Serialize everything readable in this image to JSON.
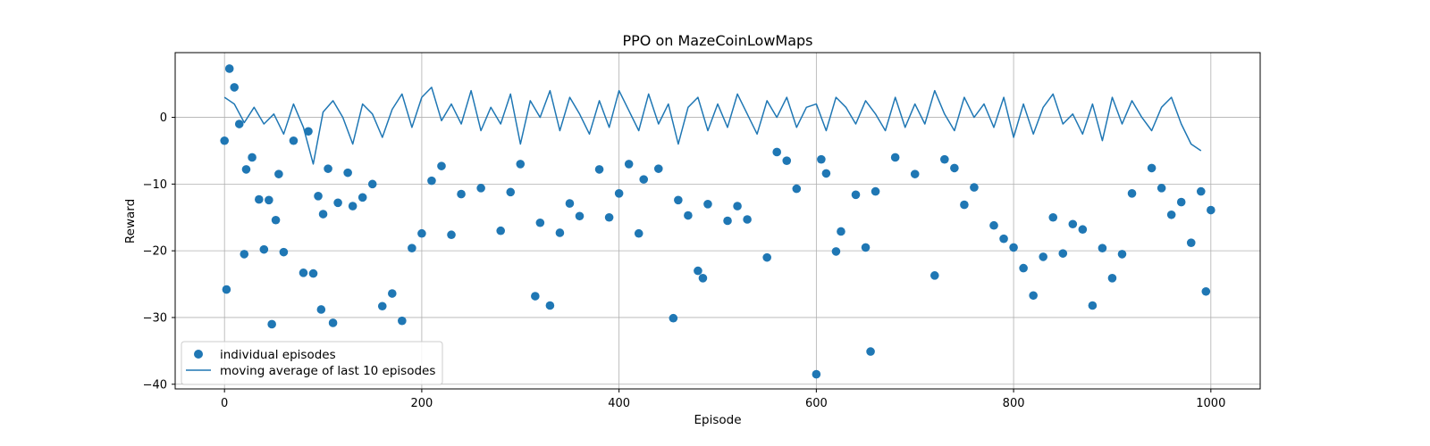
{
  "chart_data": {
    "type": "scatter",
    "title": "PPO on MazeCoinLowMaps",
    "xlabel": "Episode",
    "ylabel": "Reward",
    "xlim": [
      -50,
      1050
    ],
    "ylim": [
      -40.7,
      9.7
    ],
    "xticks": [
      0,
      200,
      400,
      600,
      800,
      1000
    ],
    "yticks": [
      0,
      -10,
      -20,
      -30,
      -40
    ],
    "grid": true,
    "legend_position": "lower-left",
    "colors": {
      "series": "#1f77b4",
      "grid": "#b0b0b0"
    },
    "series": [
      {
        "name": "individual episodes",
        "kind": "scatter",
        "x": [
          0,
          2,
          5,
          10,
          15,
          20,
          22,
          28,
          35,
          40,
          45,
          48,
          52,
          55,
          60,
          70,
          80,
          85,
          90,
          95,
          98,
          100,
          105,
          110,
          115,
          125,
          130,
          140,
          150,
          160,
          170,
          180,
          190,
          200,
          210,
          220,
          230,
          240,
          260,
          280,
          290,
          300,
          315,
          320,
          330,
          340,
          350,
          360,
          380,
          390,
          400,
          410,
          420,
          425,
          440,
          455,
          460,
          470,
          480,
          485,
          490,
          510,
          520,
          530,
          550,
          560,
          570,
          580,
          600,
          605,
          610,
          620,
          625,
          640,
          650,
          655,
          660,
          680,
          700,
          720,
          730,
          740,
          750,
          760,
          780,
          790,
          800,
          810,
          820,
          830,
          840,
          850,
          860,
          870,
          880,
          890,
          900,
          910,
          920,
          940,
          950,
          960,
          970,
          980,
          990,
          995,
          1000
        ],
        "y": [
          -3.5,
          -25.8,
          7.3,
          4.5,
          -1.0,
          -20.5,
          -7.8,
          -6.0,
          -12.3,
          -19.8,
          -12.4,
          -31.0,
          -15.4,
          -8.5,
          -20.2,
          -3.5,
          -23.3,
          -2.1,
          -23.4,
          -11.8,
          -28.8,
          -14.5,
          -7.7,
          -30.8,
          -12.8,
          -8.3,
          -13.3,
          -12.0,
          -10.0,
          -28.3,
          -26.4,
          -30.5,
          -19.6,
          -17.4,
          -9.5,
          -7.3,
          -17.6,
          -11.5,
          -10.6,
          -17.0,
          -11.2,
          -7.0,
          -26.8,
          -15.8,
          -28.2,
          -17.3,
          -12.9,
          -14.8,
          -7.8,
          -15.0,
          -11.4,
          -7.0,
          -17.4,
          -9.3,
          -7.7,
          -30.1,
          -12.4,
          -14.7,
          -23.0,
          -24.1,
          -13.0,
          -15.5,
          -13.3,
          -15.3,
          -21.0,
          -5.2,
          -6.5,
          -10.7,
          -38.5,
          -6.3,
          -8.4,
          -20.1,
          -17.1,
          -11.6,
          -19.5,
          -35.1,
          -11.1,
          -6.0,
          -8.5,
          -23.7,
          -6.3,
          -7.6,
          -13.1,
          -10.5,
          -16.2,
          -18.2,
          -19.5,
          -22.6,
          -26.7,
          -20.9,
          -15.0,
          -20.4,
          -16.0,
          -16.8,
          -28.2,
          -19.6,
          -24.1,
          -20.5,
          -11.4,
          -7.6,
          -10.6,
          -14.6,
          -12.7,
          -18.8,
          -11.1,
          -26.1,
          -13.9
        ]
      },
      {
        "name": "moving average of last 10 episodes",
        "kind": "line",
        "x": [
          0,
          10,
          20,
          30,
          40,
          50,
          60,
          70,
          80,
          90,
          100,
          110,
          120,
          130,
          140,
          150,
          160,
          170,
          180,
          190,
          200,
          210,
          220,
          230,
          240,
          250,
          260,
          270,
          280,
          290,
          300,
          310,
          320,
          330,
          340,
          350,
          360,
          370,
          380,
          390,
          400,
          410,
          420,
          430,
          440,
          450,
          460,
          470,
          480,
          490,
          500,
          510,
          520,
          530,
          540,
          550,
          560,
          570,
          580,
          590,
          600,
          610,
          620,
          630,
          640,
          650,
          660,
          670,
          680,
          690,
          700,
          710,
          720,
          730,
          740,
          750,
          760,
          770,
          780,
          790,
          800,
          810,
          820,
          830,
          840,
          850,
          860,
          870,
          880,
          890,
          900,
          910,
          920,
          930,
          940,
          950,
          960,
          970,
          980,
          990
        ],
        "y": [
          3.0,
          2.0,
          -0.8,
          1.5,
          -1.0,
          0.5,
          -2.5,
          2.0,
          -1.5,
          -7.0,
          0.8,
          2.5,
          0.0,
          -4.0,
          2.0,
          0.5,
          -3.0,
          1.2,
          3.5,
          -1.5,
          3.0,
          4.5,
          -0.5,
          2.0,
          -1.0,
          4.0,
          -2.0,
          1.5,
          -1.0,
          3.5,
          -4.0,
          2.5,
          0.0,
          4.0,
          -2.0,
          3.0,
          0.5,
          -2.5,
          2.5,
          -1.5,
          4.0,
          1.0,
          -2.0,
          3.5,
          -1.0,
          2.0,
          -4.0,
          1.5,
          3.0,
          -2.0,
          2.0,
          -1.5,
          3.5,
          0.5,
          -2.5,
          2.5,
          0.0,
          3.0,
          -1.5,
          1.5,
          2.0,
          -2.0,
          3.0,
          1.5,
          -1.0,
          2.5,
          0.5,
          -2.0,
          3.0,
          -1.5,
          2.0,
          -1.0,
          4.0,
          0.5,
          -2.0,
          3.0,
          0.0,
          2.0,
          -1.5,
          3.0,
          -3.0,
          2.0,
          -2.5,
          1.5,
          3.5,
          -1.0,
          0.5,
          -2.5,
          2.0,
          -3.5,
          3.0,
          -1.0,
          2.5,
          0.0,
          -2.0,
          1.5,
          3.0,
          -1.0,
          -4.0,
          -5.0
        ]
      }
    ]
  }
}
